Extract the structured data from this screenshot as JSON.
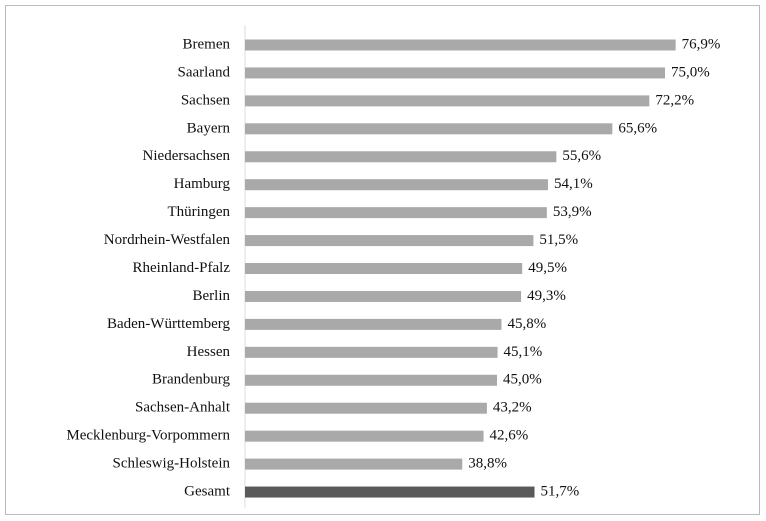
{
  "chart_data": {
    "type": "hbar",
    "categories": [
      "Bremen",
      "Saarland",
      "Sachsen",
      "Bayern",
      "Niedersachsen",
      "Hamburg",
      "Thüringen",
      "Nordrhein-Westfalen",
      "Rheinland-Pfalz",
      "Berlin",
      "Baden-Württemberg",
      "Hessen",
      "Brandenburg",
      "Sachsen-Anhalt",
      "Mecklenburg-Vorpommern",
      "Schleswig-Holstein",
      "Gesamt"
    ],
    "values": [
      76.9,
      75.0,
      72.2,
      65.6,
      55.6,
      54.1,
      53.9,
      51.5,
      49.5,
      49.3,
      45.8,
      45.1,
      45.0,
      43.2,
      42.6,
      38.8,
      51.7
    ],
    "value_labels": [
      "76,9%",
      "75,0%",
      "72,2%",
      "65,6%",
      "55,6%",
      "54,1%",
      "53,9%",
      "51,5%",
      "49,5%",
      "49,3%",
      "45,8%",
      "45,1%",
      "45,0%",
      "43,2%",
      "42,6%",
      "38,8%",
      "51,7%"
    ],
    "colors": [
      "#a9a9a9",
      "#a9a9a9",
      "#a9a9a9",
      "#a9a9a9",
      "#a9a9a9",
      "#a9a9a9",
      "#a9a9a9",
      "#a9a9a9",
      "#a9a9a9",
      "#a9a9a9",
      "#a9a9a9",
      "#a9a9a9",
      "#a9a9a9",
      "#a9a9a9",
      "#a9a9a9",
      "#a9a9a9",
      "#5a5a5a"
    ]
  }
}
